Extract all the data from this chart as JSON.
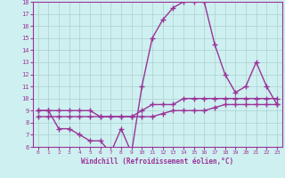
{
  "x": [
    0,
    1,
    2,
    3,
    4,
    5,
    6,
    7,
    8,
    9,
    10,
    11,
    12,
    13,
    14,
    15,
    16,
    17,
    18,
    19,
    20,
    21,
    22,
    23
  ],
  "line1": [
    9,
    9,
    7.5,
    7.5,
    7,
    6.5,
    6.5,
    5.5,
    7.5,
    5.5,
    11,
    15,
    16.5,
    17.5,
    18,
    18,
    18,
    14.5,
    12,
    10.5,
    11,
    13,
    11,
    9.5
  ],
  "line2": [
    9,
    9,
    9,
    9,
    9,
    9,
    8.5,
    8.5,
    8.5,
    8.5,
    9,
    9.5,
    9.5,
    9.5,
    10,
    10,
    10,
    10,
    10,
    10,
    10,
    10,
    10,
    10
  ],
  "line3": [
    8.5,
    8.5,
    8.5,
    8.5,
    8.5,
    8.5,
    8.5,
    8.5,
    8.5,
    8.5,
    8.5,
    8.5,
    8.75,
    9,
    9,
    9,
    9,
    9.25,
    9.5,
    9.5,
    9.5,
    9.5,
    9.5,
    9.5
  ],
  "bg_color": "#cff0f0",
  "line_color": "#993399",
  "grid_color": "#aacfcf",
  "xlabel": "Windchill (Refroidissement éolien,°C)",
  "ylim": [
    6,
    18
  ],
  "xlim": [
    -0.5,
    23.5
  ],
  "yticks": [
    6,
    7,
    8,
    9,
    10,
    11,
    12,
    13,
    14,
    15,
    16,
    17,
    18
  ],
  "xticks": [
    0,
    1,
    2,
    3,
    4,
    5,
    6,
    7,
    8,
    9,
    10,
    11,
    12,
    13,
    14,
    15,
    16,
    17,
    18,
    19,
    20,
    21,
    22,
    23
  ],
  "marker": "+",
  "markersize": 4,
  "markeredgewidth": 1.0,
  "linewidth": 1.0
}
